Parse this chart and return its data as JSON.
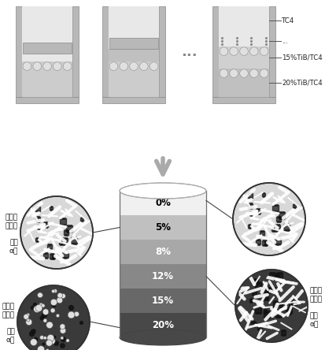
{
  "layer_labels": [
    "0%",
    "5%",
    "8%",
    "12%",
    "15%",
    "20%"
  ],
  "layer_colors": [
    "#f0f0f0",
    "#c0c0c0",
    "#a8a8a8",
    "#888888",
    "#686868",
    "#484848"
  ],
  "layer_text_colors": [
    "#000000",
    "#000000",
    "#ffffff",
    "#ffffff",
    "#ffffff",
    "#ffffff"
  ],
  "wall_color": "#b8b8b8",
  "wall_edge": "#888888",
  "ball_bg": "#cccccc",
  "ball_color": "#e0e0e0",
  "ball_edge": "#909090",
  "solid_color": "#c0c0c0",
  "arrow_color": "#999999",
  "label_fs": 6.5,
  "pct_fs": 8.5,
  "conn_color": "#555555",
  "mold3_labels": [
    "TC4",
    "...",
    "15%TiB/TC4",
    "20%TiB/TC4"
  ],
  "dots_color": "#888888"
}
